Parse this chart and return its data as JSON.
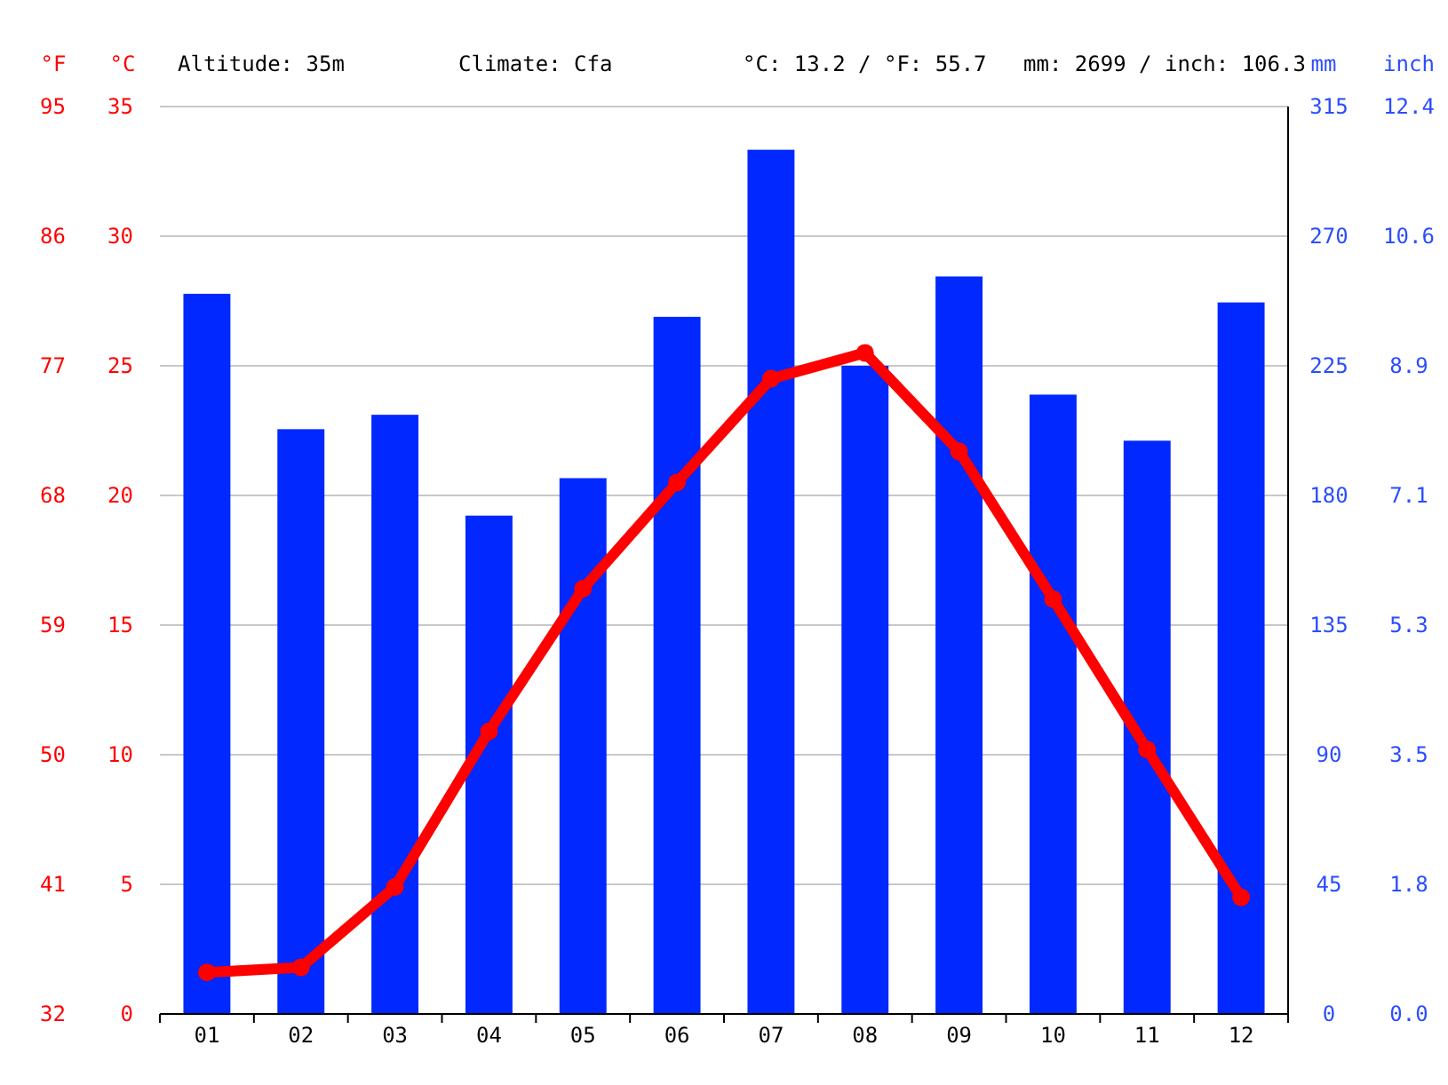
{
  "chart_data": {
    "type": "bar",
    "categories": [
      "01",
      "02",
      "03",
      "04",
      "05",
      "06",
      "07",
      "08",
      "09",
      "10",
      "11",
      "12"
    ],
    "series": [
      {
        "axis": "y2",
        "color": "#0028ff",
        "values": [
          250,
          203,
          208,
          173,
          186,
          242,
          300,
          225,
          256,
          215,
          199,
          247
        ]
      },
      {
        "type": "line",
        "axis": "y",
        "color": "#ff0000",
        "marker": "circle",
        "values": [
          1.6,
          1.8,
          4.9,
          10.9,
          16.4,
          20.5,
          24.5,
          25.5,
          21.7,
          16.0,
          10.2,
          4.5
        ]
      }
    ],
    "ylabel": "°C",
    "y2label": "mm",
    "y3label": "°F",
    "ylim": [
      0,
      35
    ],
    "yticks": [
      0,
      5,
      10,
      15,
      20,
      25,
      30,
      35
    ],
    "y2lim": [
      0,
      315
    ],
    "y2ticks": [
      0,
      45,
      90,
      135,
      180,
      225,
      270,
      315
    ],
    "y3lim": [
      32,
      95
    ],
    "y3ticks": [
      32,
      41,
      50,
      59,
      68,
      77,
      86,
      95
    ],
    "annotations": [
      "Altitude: 35m",
      "Climate: Cfa",
      "°C: 13.2 / °F: 55.7",
      "mm: 2699 / inch: 106.3",
      "inch",
      "0.0",
      "1.8",
      "3.5",
      "5.3",
      "7.1",
      "8.9",
      "10.6",
      "12.4"
    ],
    "grid": "y"
  }
}
